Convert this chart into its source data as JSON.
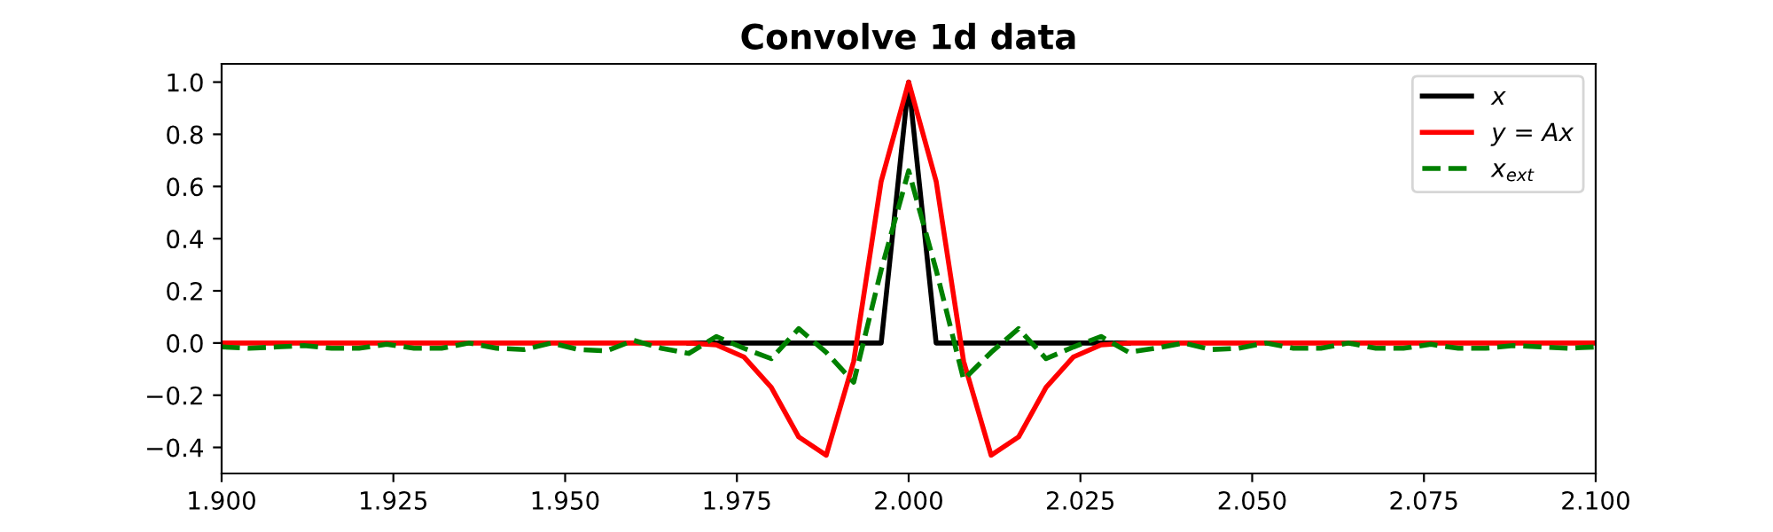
{
  "chart_data": {
    "type": "line",
    "title": "Convolve 1d data",
    "x": [
      1.9,
      1.904,
      1.908,
      1.912,
      1.916,
      1.92,
      1.924,
      1.928,
      1.932,
      1.936,
      1.94,
      1.944,
      1.948,
      1.952,
      1.956,
      1.96,
      1.964,
      1.968,
      1.972,
      1.976,
      1.98,
      1.984,
      1.988,
      1.992,
      1.996,
      2.0,
      2.004,
      2.008,
      2.012,
      2.016,
      2.02,
      2.024,
      2.028,
      2.032,
      2.036,
      2.04,
      2.044,
      2.048,
      2.052,
      2.056,
      2.06,
      2.064,
      2.068,
      2.072,
      2.076,
      2.08,
      2.084,
      2.088,
      2.092,
      2.096,
      2.1
    ],
    "series": [
      {
        "name": "x",
        "color": "#000000",
        "line_style": "solid",
        "values": [
          null,
          null,
          null,
          null,
          null,
          null,
          null,
          null,
          null,
          null,
          null,
          null,
          null,
          null,
          null,
          null,
          null,
          0,
          0,
          0,
          0,
          0,
          0,
          0,
          0,
          1.0,
          0,
          0,
          0,
          0,
          0,
          0,
          0,
          0,
          null,
          null,
          null,
          null,
          null,
          null,
          null,
          null,
          null,
          null,
          null,
          null,
          null,
          null,
          null,
          null,
          null
        ]
      },
      {
        "name": "y = Ax",
        "color": "#ff0000",
        "line_style": "solid",
        "values": [
          0,
          0,
          0,
          0,
          0,
          0,
          0,
          0,
          0,
          0,
          0,
          0,
          0,
          0,
          0,
          0,
          0,
          0,
          -0.007,
          -0.053,
          -0.17,
          -0.36,
          -0.43,
          -0.07,
          0.62,
          1.0,
          0.62,
          -0.07,
          -0.43,
          -0.36,
          -0.17,
          -0.053,
          -0.007,
          0,
          0,
          0,
          0,
          0,
          0,
          0,
          0,
          0,
          0,
          0,
          0,
          0,
          0,
          0,
          0,
          0,
          0
        ]
      },
      {
        "name": "x$_{ext}$",
        "color": "#008000",
        "line_style": "dashed",
        "values": [
          -0.015,
          -0.02,
          -0.015,
          -0.01,
          -0.02,
          -0.02,
          -0.005,
          -0.02,
          -0.02,
          0.0,
          -0.02,
          -0.025,
          0.0,
          -0.025,
          -0.03,
          0.01,
          -0.02,
          -0.04,
          0.025,
          -0.02,
          -0.06,
          0.055,
          -0.036,
          -0.15,
          0.28,
          0.66,
          0.28,
          -0.14,
          -0.036,
          0.055,
          -0.06,
          -0.015,
          0.025,
          -0.035,
          -0.02,
          0.0,
          -0.025,
          -0.02,
          0.0,
          -0.02,
          -0.02,
          0.0,
          -0.02,
          -0.02,
          -0.005,
          -0.02,
          -0.02,
          -0.01,
          -0.015,
          -0.02,
          -0.015
        ]
      }
    ],
    "xlim": [
      1.9,
      2.1
    ],
    "xticks": [
      {
        "value": 1.9,
        "label": "1.900"
      },
      {
        "value": 1.925,
        "label": "1.925"
      },
      {
        "value": 1.95,
        "label": "1.950"
      },
      {
        "value": 1.975,
        "label": "1.975"
      },
      {
        "value": 2.0,
        "label": "2.000"
      },
      {
        "value": 2.025,
        "label": "2.025"
      },
      {
        "value": 2.05,
        "label": "2.050"
      },
      {
        "value": 2.075,
        "label": "2.075"
      },
      {
        "value": 2.1,
        "label": "2.100"
      }
    ],
    "ylim": [
      -0.5,
      1.07
    ],
    "yticks": [
      {
        "value": -0.4,
        "label": "−0.4"
      },
      {
        "value": -0.2,
        "label": "−0.2"
      },
      {
        "value": 0,
        "label": "0.0"
      },
      {
        "value": 0.2,
        "label": "0.2"
      },
      {
        "value": 0.4,
        "label": "0.4"
      },
      {
        "value": 0.6,
        "label": "0.6"
      },
      {
        "value": 0.8,
        "label": "0.8"
      },
      {
        "value": 1.0,
        "label": "1.0"
      }
    ],
    "grid": false,
    "legend": "top right"
  }
}
